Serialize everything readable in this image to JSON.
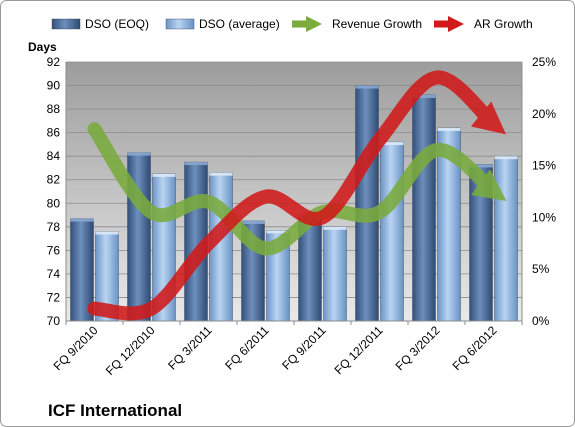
{
  "chart_data": {
    "type": "bar",
    "categories": [
      "FQ 9/2010",
      "FQ 12/2010",
      "FQ 3/2011",
      "FQ 6/2011",
      "FQ 9/2011",
      "FQ 12/2011",
      "FQ 3/2012",
      "FQ 6/2012"
    ],
    "bar_series": [
      {
        "name": "DSO (EOQ)",
        "values": [
          78.7,
          84.3,
          83.5,
          78.5,
          79.0,
          90.0,
          89.2,
          83.3
        ],
        "color": "#4a6a96"
      },
      {
        "name": "DSO (average)",
        "values": [
          77.6,
          82.5,
          82.6,
          77.7,
          78.0,
          85.2,
          86.4,
          84.0
        ],
        "color": "#8fb4e0"
      }
    ],
    "line_series": [
      {
        "name": "Revenue Growth",
        "values": [
          18.5,
          10.5,
          11.5,
          7.0,
          10.5,
          10.5,
          16.5,
          12.5
        ],
        "color": "#7aab3d"
      },
      {
        "name": "AR Growth",
        "values": [
          1.2,
          1.2,
          7.5,
          12.0,
          10.0,
          17.5,
          23.5,
          19.0
        ],
        "color": "#d11a1a"
      }
    ],
    "ylabel": "Days",
    "ylim": [
      70,
      92
    ],
    "yticks": [
      70,
      72,
      74,
      76,
      78,
      80,
      82,
      84,
      86,
      88,
      90,
      92
    ],
    "y2lim": [
      0,
      25
    ],
    "y2ticks": [
      "0%",
      "5%",
      "10%",
      "15%",
      "20%",
      "25%"
    ],
    "legend_position": "top",
    "grid": true,
    "footer": "ICF International"
  }
}
